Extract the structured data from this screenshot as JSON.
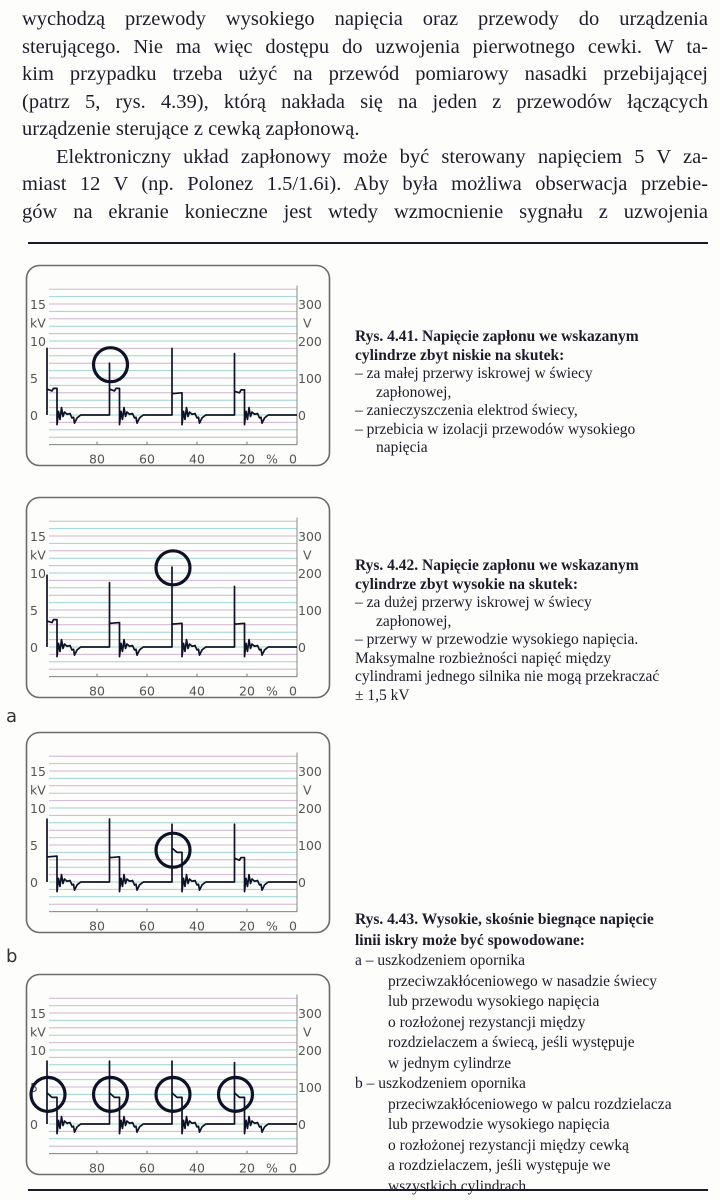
{
  "body_text": {
    "lines": [
      "wychodzą przewody wysokiego napięcia oraz przewody do urządzenia",
      "sterującego. Nie ma więc dostępu do uzwojenia pierwotnego cewki. W ta-",
      "kim przypadku trzeba użyć na przewód pomiarowy nasadki przebijającej",
      "(patrz 5, rys. 4.39), którą nakłada się na jeden z przewodów łączących",
      "urządzenie sterujące z cewką zapłonową.",
      "Elektroniczny układ zapłonowy może być sterowany napięciem 5 V za-",
      "miast 12 V (np. Polonez 1.5/1.6i). Aby była możliwa obserwacja przebie-",
      "gów na ekranie konieczne jest wtedy wzmocnienie sygnału z uzwojenia"
    ]
  },
  "captions": {
    "fig441": {
      "title_lines": [
        "Rys. 4.41. Napięcie zapłonu we wskazanym",
        "cylindrze zbyt niskie na skutek:"
      ],
      "items": [
        "– za małej przerwy iskrowej w świecy",
        "zapłonowej,",
        "– zanieczyszczenia elektrod świecy,",
        "– przebicia w izolacji przewodów wysokiego",
        "napięcia"
      ]
    },
    "fig442": {
      "title_lines": [
        "Rys. 4.42. Napięcie zapłonu we wskazanym",
        "cylindrze zbyt wysokie na skutek:"
      ],
      "items": [
        "– za dużej przerwy iskrowej w świecy",
        "zapłonowej,",
        "– przerwy w przewodzie wysokiego napięcia.",
        "Maksymalne rozbieżności napięć między",
        "cylindrami jednego silnika nie mogą przekraczać",
        "± 1,5 kV"
      ]
    },
    "fig443": {
      "title_lines": [
        "Rys. 4.43. Wysokie, skośnie biegnące napięcie",
        "linii iskry może być spowodowane:"
      ],
      "items": [
        "a – uszkodzeniem opornika",
        "przeciwzakłóceniowego w nasadzie świecy",
        "lub przewodu wysokiego napięcia",
        "o rozłożonej rezystancji między",
        "rozdzielaczem a świecą, jeśli występuje",
        "w jednym cylindrze",
        "b – uszkodzeniem opornika",
        "przeciwzakłóceniowego w palcu rozdzielacza",
        "lub przewodzie wysokiego napięcia",
        "o rozłożonej rezystancji między cewką",
        "a rozdzielaczem, jeśli występuje we",
        "wszystkich cylindrach"
      ]
    }
  },
  "sublabels": {
    "a": "a",
    "b": "b"
  },
  "colors": {
    "trace": "#0e1226",
    "grid_a": "#cdb6d2",
    "grid_b": "#9fd3d6",
    "frame": "#6a6a6a"
  },
  "chart_data": [
    {
      "type": "line",
      "figure": "4.41",
      "left_axis": {
        "ticks": [
          "15",
          "10",
          "5",
          "0"
        ],
        "tick_values": [
          15,
          10,
          5,
          0
        ],
        "unit": "kV"
      },
      "right_axis": {
        "ticks": [
          "300",
          "200",
          "100",
          "0"
        ],
        "unit": "V"
      },
      "x_axis": {
        "ticks": [
          "80",
          "60",
          "40",
          "20",
          "0"
        ],
        "tick_values": [
          80,
          60,
          40,
          20,
          0
        ],
        "unit": "%",
        "range": [
          100,
          0
        ]
      },
      "ylim": [
        -4,
        17.5
      ],
      "grid": true,
      "cylinders": [
        {
          "pos": 100,
          "peak_kv": 9,
          "spark_start_kv": 3.5,
          "spark_end_kv": 3.6,
          "circled": false
        },
        {
          "pos": 75,
          "peak_kv": 7,
          "spark_start_kv": 3.5,
          "spark_end_kv": 3.6,
          "circled": true,
          "circle_kv": 6.8
        },
        {
          "pos": 50,
          "peak_kv": 9,
          "spark_start_kv": 3.0,
          "spark_end_kv": 3.0,
          "circled": false
        },
        {
          "pos": 25,
          "peak_kv": 8.3,
          "spark_start_kv": 3.2,
          "spark_end_kv": 3.4,
          "circled": false
        }
      ]
    },
    {
      "type": "line",
      "figure": "4.42",
      "left_axis": {
        "ticks": [
          "15",
          "10",
          "5",
          "0"
        ],
        "tick_values": [
          15,
          10,
          5,
          0
        ],
        "unit": "kV"
      },
      "right_axis": {
        "ticks": [
          "300",
          "200",
          "100",
          "0"
        ],
        "unit": "V"
      },
      "x_axis": {
        "ticks": [
          "80",
          "60",
          "40",
          "20",
          "0"
        ],
        "tick_values": [
          80,
          60,
          40,
          20,
          0
        ],
        "unit": "%",
        "range": [
          100,
          0
        ]
      },
      "ylim": [
        -4,
        17.5
      ],
      "grid": true,
      "cylinders": [
        {
          "pos": 100,
          "peak_kv": 9.7,
          "spark_start_kv": 3.5,
          "spark_end_kv": 3.7,
          "circled": false
        },
        {
          "pos": 75,
          "peak_kv": 8.7,
          "spark_start_kv": 3.3,
          "spark_end_kv": 3.3,
          "circled": false
        },
        {
          "pos": 50,
          "peak_kv": 10.8,
          "spark_start_kv": 3.2,
          "spark_end_kv": 3.2,
          "circled": true,
          "circle_kv": 10.7
        },
        {
          "pos": 25,
          "peak_kv": 8.2,
          "spark_start_kv": 3.2,
          "spark_end_kv": 3.2,
          "circled": false
        }
      ]
    },
    {
      "type": "line",
      "figure": "4.43a",
      "left_axis": {
        "ticks": [
          "15",
          "10",
          "5",
          "0"
        ],
        "tick_values": [
          15,
          10,
          5,
          0
        ],
        "unit": "kV"
      },
      "right_axis": {
        "ticks": [
          "300",
          "200",
          "100",
          "0"
        ],
        "unit": "V"
      },
      "x_axis": {
        "ticks": [
          "80",
          "60",
          "40",
          "20",
          "0"
        ],
        "tick_values": [
          80,
          60,
          40,
          20,
          0
        ],
        "unit": "%",
        "range": [
          100,
          0
        ]
      },
      "ylim": [
        -4,
        17.5
      ],
      "grid": true,
      "cylinders": [
        {
          "pos": 100,
          "peak_kv": 8.5,
          "spark_start_kv": 3.5,
          "spark_end_kv": 3.5,
          "circled": false
        },
        {
          "pos": 75,
          "peak_kv": 8.5,
          "spark_start_kv": 3.4,
          "spark_end_kv": 3.4,
          "circled": false
        },
        {
          "pos": 50,
          "peak_kv": 7.8,
          "spark_start_kv": 4.6,
          "spark_end_kv": 4.0,
          "circled": true,
          "circle_kv": 4.3
        },
        {
          "pos": 25,
          "peak_kv": 7.8,
          "spark_start_kv": 3.2,
          "spark_end_kv": 3.3,
          "circled": false
        }
      ]
    },
    {
      "type": "line",
      "figure": "4.43b",
      "left_axis": {
        "ticks": [
          "15",
          "10",
          "5",
          "0"
        ],
        "tick_values": [
          15,
          10,
          5,
          0
        ],
        "unit": "kV"
      },
      "right_axis": {
        "ticks": [
          "300",
          "200",
          "100",
          "0"
        ],
        "unit": "V"
      },
      "x_axis": {
        "ticks": [
          "80",
          "60",
          "40",
          "20",
          "0"
        ],
        "tick_values": [
          80,
          60,
          40,
          20,
          0
        ],
        "unit": "%",
        "range": [
          100,
          0
        ]
      },
      "ylim": [
        -4,
        17.5
      ],
      "grid": true,
      "cylinders": [
        {
          "pos": 100,
          "peak_kv": 8.5,
          "spark_start_kv": 4.2,
          "spark_end_kv": 3.6,
          "circled": true,
          "circle_kv": 4.0
        },
        {
          "pos": 75,
          "peak_kv": 8.5,
          "spark_start_kv": 4.2,
          "spark_end_kv": 3.6,
          "circled": true,
          "circle_kv": 4.0
        },
        {
          "pos": 50,
          "peak_kv": 8.5,
          "spark_start_kv": 4.2,
          "spark_end_kv": 3.6,
          "circled": true,
          "circle_kv": 4.0
        },
        {
          "pos": 25,
          "peak_kv": 8.3,
          "spark_start_kv": 4.2,
          "spark_end_kv": 3.6,
          "circled": true,
          "circle_kv": 4.0
        }
      ]
    }
  ]
}
